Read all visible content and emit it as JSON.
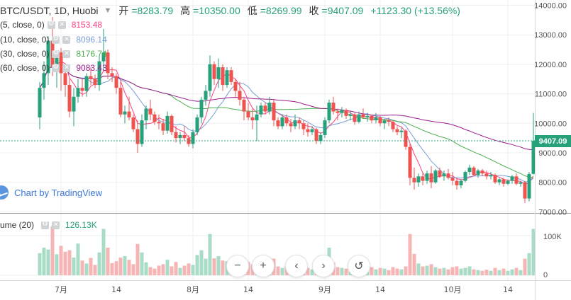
{
  "header": {
    "symbol": "BTC/USDT, 1D, Huobi",
    "open_label": "开",
    "open_value": "=8283.79",
    "high_label": "高",
    "high_value": "=10350.00",
    "low_label": "低",
    "low_value": "=8269.99",
    "close_label": "收",
    "close_value": "=9407.09",
    "change": "+1123.30 (+13.56%)"
  },
  "indicators": [
    {
      "name": "(5, close, 0)",
      "value": "8153.48",
      "color": "#ff4081"
    },
    {
      "name": "(10, close, 0)",
      "value": "8096.14",
      "color": "#7a9cd6"
    },
    {
      "name": "(30, close, 0)",
      "value": "8176.74",
      "color": "#4caf50"
    },
    {
      "name": "(60, close, 0)",
      "value": "9083.43",
      "color": "#9c1d8c"
    }
  ],
  "watermark": "Chart by TradingView",
  "volume_legend": {
    "name": "ume (20)",
    "value": "126.13K"
  },
  "last_price_label": "9407.09",
  "colors": {
    "up": "#26a17b",
    "down": "#ef5350",
    "vol_up": "#a8dcc6",
    "vol_down": "#f5b5b5",
    "grid": "#eef0f2",
    "axis_text": "#555555"
  },
  "icons": [
    "gear-icon",
    "close-icon",
    "tradingview-logo-icon",
    "zoom-out-icon",
    "zoom-in-icon",
    "scroll-left-icon",
    "scroll-right-icon",
    "reset-icon"
  ],
  "nav_buttons": [
    "−",
    "+",
    "‹",
    "›",
    "↺"
  ],
  "chart_data": {
    "type": "candlestick",
    "price_axis": {
      "ticks": [
        "14000.00",
        "13000.00",
        "12000.00",
        "11000.00",
        "10000.00",
        "9000.00",
        "8000.00",
        "7000.00"
      ],
      "ylim": [
        6960,
        14180
      ]
    },
    "volume_axis": {
      "ticks": [
        "100K",
        "0"
      ]
    },
    "time_axis": {
      "ticks": [
        "7月",
        "14",
        "8月",
        "14",
        "9月",
        "14",
        "10月",
        "14"
      ],
      "tick_days": [
        5,
        18,
        36,
        49,
        67,
        80,
        97,
        110
      ]
    },
    "last_price": 9407.09,
    "candles": [
      {
        "o": 10200,
        "h": 11400,
        "l": 9800,
        "c": 11200,
        "v": 60
      },
      {
        "o": 11200,
        "h": 12100,
        "l": 10800,
        "c": 11700,
        "v": 75
      },
      {
        "o": 11700,
        "h": 12950,
        "l": 11300,
        "c": 12800,
        "v": 70
      },
      {
        "o": 12800,
        "h": 13600,
        "l": 11600,
        "c": 11900,
        "v": 133
      },
      {
        "o": 11900,
        "h": 12450,
        "l": 11200,
        "c": 12400,
        "v": 57
      },
      {
        "o": 12400,
        "h": 12550,
        "l": 11100,
        "c": 11700,
        "v": 80
      },
      {
        "o": 11700,
        "h": 11900,
        "l": 10900,
        "c": 11300,
        "v": 64
      },
      {
        "o": 11300,
        "h": 11500,
        "l": 10200,
        "c": 10400,
        "v": 68
      },
      {
        "o": 10400,
        "h": 11200,
        "l": 9900,
        "c": 10900,
        "v": 48
      },
      {
        "o": 10900,
        "h": 11500,
        "l": 10700,
        "c": 11200,
        "v": 86
      },
      {
        "o": 11200,
        "h": 11500,
        "l": 10900,
        "c": 11100,
        "v": 40
      },
      {
        "o": 11100,
        "h": 11700,
        "l": 10900,
        "c": 11600,
        "v": 32
      },
      {
        "o": 11600,
        "h": 11900,
        "l": 11300,
        "c": 11500,
        "v": 47
      },
      {
        "o": 11500,
        "h": 11650,
        "l": 11200,
        "c": 11300,
        "v": 28
      },
      {
        "o": 11300,
        "h": 12300,
        "l": 11100,
        "c": 12100,
        "v": 62
      },
      {
        "o": 12100,
        "h": 13200,
        "l": 11800,
        "c": 12400,
        "v": 126
      },
      {
        "o": 12400,
        "h": 12500,
        "l": 11500,
        "c": 11700,
        "v": 75
      },
      {
        "o": 11700,
        "h": 11900,
        "l": 11400,
        "c": 11600,
        "v": 33
      },
      {
        "o": 11600,
        "h": 11700,
        "l": 11000,
        "c": 11200,
        "v": 38
      },
      {
        "o": 11200,
        "h": 11400,
        "l": 10200,
        "c": 10300,
        "v": 48
      },
      {
        "o": 10300,
        "h": 10600,
        "l": 10000,
        "c": 10400,
        "v": 52
      },
      {
        "o": 10400,
        "h": 10900,
        "l": 10100,
        "c": 10200,
        "v": 42
      },
      {
        "o": 10200,
        "h": 10300,
        "l": 9700,
        "c": 9800,
        "v": 30
      },
      {
        "o": 9800,
        "h": 10100,
        "l": 9000,
        "c": 9300,
        "v": 85
      },
      {
        "o": 9300,
        "h": 10300,
        "l": 9200,
        "c": 10100,
        "v": 62
      },
      {
        "o": 10100,
        "h": 10600,
        "l": 9800,
        "c": 10500,
        "v": 35
      },
      {
        "o": 10500,
        "h": 10800,
        "l": 10100,
        "c": 10300,
        "v": 22
      },
      {
        "o": 10300,
        "h": 10400,
        "l": 9950,
        "c": 10050,
        "v": 18
      },
      {
        "o": 10050,
        "h": 10300,
        "l": 9800,
        "c": 10000,
        "v": 26
      },
      {
        "o": 10000,
        "h": 10150,
        "l": 9600,
        "c": 9750,
        "v": 30
      },
      {
        "o": 9750,
        "h": 10400,
        "l": 9650,
        "c": 10250,
        "v": 42
      },
      {
        "o": 10250,
        "h": 10300,
        "l": 9600,
        "c": 9700,
        "v": 24
      },
      {
        "o": 9700,
        "h": 9900,
        "l": 9350,
        "c": 9500,
        "v": 36
      },
      {
        "o": 9500,
        "h": 9700,
        "l": 9300,
        "c": 9600,
        "v": 20
      },
      {
        "o": 9600,
        "h": 9900,
        "l": 9400,
        "c": 9500,
        "v": 26
      },
      {
        "o": 9500,
        "h": 9600,
        "l": 9200,
        "c": 9300,
        "v": 32
      },
      {
        "o": 9300,
        "h": 9800,
        "l": 9150,
        "c": 9700,
        "v": 28
      },
      {
        "o": 9700,
        "h": 10300,
        "l": 9600,
        "c": 10200,
        "v": 55
      },
      {
        "o": 10200,
        "h": 10900,
        "l": 10000,
        "c": 10800,
        "v": 68
      },
      {
        "o": 10800,
        "h": 11300,
        "l": 10600,
        "c": 11100,
        "v": 45
      },
      {
        "o": 11100,
        "h": 12300,
        "l": 10900,
        "c": 12000,
        "v": 112
      },
      {
        "o": 12000,
        "h": 12100,
        "l": 11300,
        "c": 11500,
        "v": 46
      },
      {
        "o": 11500,
        "h": 12200,
        "l": 11200,
        "c": 11900,
        "v": 52
      },
      {
        "o": 11900,
        "h": 12000,
        "l": 11100,
        "c": 11300,
        "v": 40
      },
      {
        "o": 11300,
        "h": 11900,
        "l": 11200,
        "c": 11800,
        "v": 38
      },
      {
        "o": 11800,
        "h": 11900,
        "l": 11300,
        "c": 11400,
        "v": 30
      },
      {
        "o": 11400,
        "h": 11500,
        "l": 10900,
        "c": 11100,
        "v": 34
      },
      {
        "o": 11100,
        "h": 11400,
        "l": 10600,
        "c": 10800,
        "v": 40
      },
      {
        "o": 10800,
        "h": 10900,
        "l": 10100,
        "c": 10400,
        "v": 48
      },
      {
        "o": 10400,
        "h": 10700,
        "l": 10100,
        "c": 10200,
        "v": 36
      },
      {
        "o": 10200,
        "h": 10500,
        "l": 9800,
        "c": 10100,
        "v": 30
      },
      {
        "o": 10100,
        "h": 10600,
        "l": 9400,
        "c": 10300,
        "v": 40
      },
      {
        "o": 10300,
        "h": 10700,
        "l": 10200,
        "c": 10600,
        "v": 26
      },
      {
        "o": 10600,
        "h": 10700,
        "l": 10300,
        "c": 10400,
        "v": 22
      },
      {
        "o": 10400,
        "h": 10900,
        "l": 10300,
        "c": 10700,
        "v": 30
      },
      {
        "o": 10700,
        "h": 10800,
        "l": 9900,
        "c": 10100,
        "v": 45
      },
      {
        "o": 10100,
        "h": 10200,
        "l": 9800,
        "c": 9900,
        "v": 24
      },
      {
        "o": 9900,
        "h": 10300,
        "l": 9800,
        "c": 10200,
        "v": 20
      },
      {
        "o": 10200,
        "h": 10300,
        "l": 9900,
        "c": 10000,
        "v": 24
      },
      {
        "o": 10000,
        "h": 10150,
        "l": 9700,
        "c": 9900,
        "v": 27
      },
      {
        "o": 9900,
        "h": 10300,
        "l": 9800,
        "c": 10100,
        "v": 22
      },
      {
        "o": 10100,
        "h": 10200,
        "l": 9800,
        "c": 10000,
        "v": 18
      },
      {
        "o": 10000,
        "h": 10100,
        "l": 9600,
        "c": 9800,
        "v": 26
      },
      {
        "o": 9800,
        "h": 10000,
        "l": 9550,
        "c": 9700,
        "v": 20
      },
      {
        "o": 9700,
        "h": 9900,
        "l": 9600,
        "c": 9800,
        "v": 16
      },
      {
        "o": 9800,
        "h": 9850,
        "l": 9300,
        "c": 9400,
        "v": 34
      },
      {
        "o": 9400,
        "h": 9700,
        "l": 9300,
        "c": 9600,
        "v": 22
      },
      {
        "o": 9600,
        "h": 10200,
        "l": 9500,
        "c": 10100,
        "v": 45
      },
      {
        "o": 10100,
        "h": 10800,
        "l": 10000,
        "c": 10700,
        "v": 75
      },
      {
        "o": 10700,
        "h": 10900,
        "l": 10300,
        "c": 10400,
        "v": 35
      },
      {
        "o": 10400,
        "h": 10500,
        "l": 10100,
        "c": 10350,
        "v": 22
      },
      {
        "o": 10350,
        "h": 10550,
        "l": 10200,
        "c": 10450,
        "v": 20
      },
      {
        "o": 10450,
        "h": 10500,
        "l": 10150,
        "c": 10250,
        "v": 18
      },
      {
        "o": 10250,
        "h": 10400,
        "l": 10100,
        "c": 10300,
        "v": 16
      },
      {
        "o": 10300,
        "h": 10350,
        "l": 9950,
        "c": 10050,
        "v": 24
      },
      {
        "o": 10050,
        "h": 10400,
        "l": 10000,
        "c": 10300,
        "v": 26
      },
      {
        "o": 10300,
        "h": 10500,
        "l": 10150,
        "c": 10200,
        "v": 14
      },
      {
        "o": 10200,
        "h": 10350,
        "l": 10050,
        "c": 10250,
        "v": 18
      },
      {
        "o": 10250,
        "h": 10300,
        "l": 10000,
        "c": 10100,
        "v": 22
      },
      {
        "o": 10100,
        "h": 10350,
        "l": 10000,
        "c": 10200,
        "v": 16
      },
      {
        "o": 10200,
        "h": 10250,
        "l": 9900,
        "c": 10000,
        "v": 20
      },
      {
        "o": 10000,
        "h": 10150,
        "l": 9800,
        "c": 10100,
        "v": 18
      },
      {
        "o": 10100,
        "h": 10200,
        "l": 9900,
        "c": 10050,
        "v": 14
      },
      {
        "o": 10050,
        "h": 10100,
        "l": 9700,
        "c": 9800,
        "v": 22
      },
      {
        "o": 9800,
        "h": 9900,
        "l": 9600,
        "c": 9700,
        "v": 18
      },
      {
        "o": 9700,
        "h": 9850,
        "l": 9500,
        "c": 9750,
        "v": 16
      },
      {
        "o": 9750,
        "h": 9800,
        "l": 9100,
        "c": 9200,
        "v": 24
      },
      {
        "o": 9200,
        "h": 9300,
        "l": 7900,
        "c": 8150,
        "v": 112
      },
      {
        "o": 8150,
        "h": 8500,
        "l": 7750,
        "c": 8000,
        "v": 58
      },
      {
        "o": 8000,
        "h": 8300,
        "l": 7850,
        "c": 8200,
        "v": 32
      },
      {
        "o": 8200,
        "h": 8300,
        "l": 7900,
        "c": 8050,
        "v": 24
      },
      {
        "o": 8050,
        "h": 8400,
        "l": 7950,
        "c": 8300,
        "v": 26
      },
      {
        "o": 8300,
        "h": 8550,
        "l": 7800,
        "c": 8000,
        "v": 30
      },
      {
        "o": 8000,
        "h": 8450,
        "l": 7950,
        "c": 8400,
        "v": 22
      },
      {
        "o": 8400,
        "h": 8500,
        "l": 8150,
        "c": 8200,
        "v": 18
      },
      {
        "o": 8200,
        "h": 8400,
        "l": 8050,
        "c": 8300,
        "v": 20
      },
      {
        "o": 8300,
        "h": 8450,
        "l": 8100,
        "c": 8150,
        "v": 16
      },
      {
        "o": 8150,
        "h": 8350,
        "l": 7900,
        "c": 8050,
        "v": 22
      },
      {
        "o": 8050,
        "h": 8150,
        "l": 7750,
        "c": 7900,
        "v": 24
      },
      {
        "o": 7900,
        "h": 8100,
        "l": 7800,
        "c": 8050,
        "v": 18
      },
      {
        "o": 8050,
        "h": 8400,
        "l": 8000,
        "c": 8350,
        "v": 20
      },
      {
        "o": 8350,
        "h": 8600,
        "l": 8250,
        "c": 8500,
        "v": 24
      },
      {
        "o": 8500,
        "h": 8550,
        "l": 8200,
        "c": 8250,
        "v": 16
      },
      {
        "o": 8250,
        "h": 8450,
        "l": 8150,
        "c": 8400,
        "v": 14
      },
      {
        "o": 8400,
        "h": 8450,
        "l": 8200,
        "c": 8300,
        "v": 12
      },
      {
        "o": 8300,
        "h": 8400,
        "l": 8100,
        "c": 8200,
        "v": 15
      },
      {
        "o": 8200,
        "h": 8350,
        "l": 8100,
        "c": 8250,
        "v": 12
      },
      {
        "o": 8250,
        "h": 8300,
        "l": 7950,
        "c": 8000,
        "v": 20
      },
      {
        "o": 8000,
        "h": 8150,
        "l": 7900,
        "c": 8100,
        "v": 14
      },
      {
        "o": 8100,
        "h": 8150,
        "l": 7850,
        "c": 7950,
        "v": 18
      },
      {
        "o": 7950,
        "h": 8100,
        "l": 7900,
        "c": 8050,
        "v": 12
      },
      {
        "o": 8050,
        "h": 8250,
        "l": 7950,
        "c": 8200,
        "v": 16
      },
      {
        "o": 8200,
        "h": 8300,
        "l": 7900,
        "c": 7950,
        "v": 20
      },
      {
        "o": 7950,
        "h": 8050,
        "l": 7850,
        "c": 8000,
        "v": 14
      },
      {
        "o": 8000,
        "h": 8050,
        "l": 7300,
        "c": 7450,
        "v": 45
      },
      {
        "o": 7450,
        "h": 8350,
        "l": 7350,
        "c": 8280,
        "v": 60
      },
      {
        "o": 8283.79,
        "h": 10350,
        "l": 8269.99,
        "c": 9407.09,
        "v": 126
      }
    ]
  }
}
